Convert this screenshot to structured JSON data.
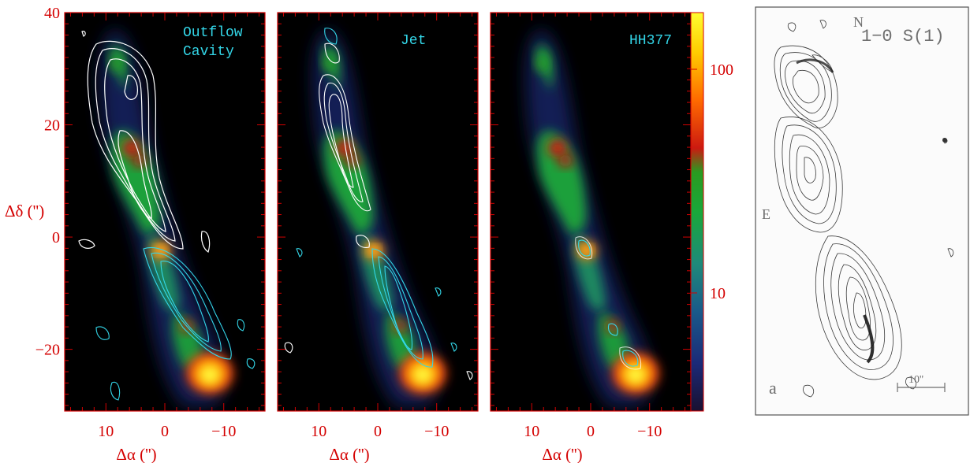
{
  "panels": [
    {
      "id": "outflow",
      "label_line1": "Outflow",
      "label_line2": "Cavity"
    },
    {
      "id": "jet",
      "label_line1": "Jet",
      "label_line2": ""
    },
    {
      "id": "hh377",
      "label_line1": "HH377",
      "label_line2": ""
    }
  ],
  "axes": {
    "xlabel": "Δα ('')",
    "ylabel": "Δδ ('')",
    "x_tick_labels": [
      "10",
      "0",
      "−10"
    ],
    "y_tick_labels": [
      "40",
      "20",
      "0",
      "−20"
    ],
    "x_range": [
      17,
      -17
    ],
    "y_range": [
      -31,
      40
    ]
  },
  "colorbar": {
    "tick_labels": [
      "100",
      "10"
    ],
    "scale": "log"
  },
  "reference_panel": {
    "north_label": "N",
    "line_label": "1−0 S(1)",
    "east_label": "E",
    "panel_letter": "a",
    "scale_bar_label": "10''"
  },
  "colors": {
    "axis": "#d40000",
    "panel_text": "#33d6e8",
    "contour_white": "#ffffff",
    "contour_cyan": "#33d6e8"
  }
}
